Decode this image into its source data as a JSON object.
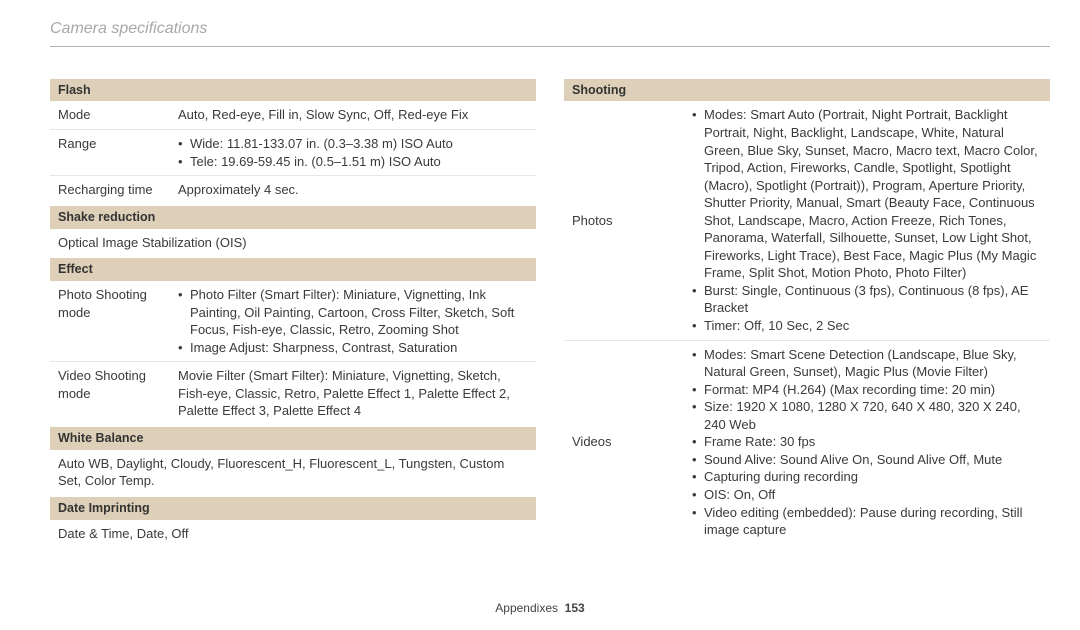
{
  "page_title": "Camera specifications",
  "footer_label": "Appendixes",
  "footer_page": "153",
  "colors": {
    "header_bg": "#ded0b8",
    "title_color": "#a8a8a8",
    "rule_color": "#b5b5b5",
    "row_border": "#e6e6e6",
    "text": "#3a3a3a"
  },
  "left": {
    "flash": {
      "header": "Flash",
      "mode_label": "Mode",
      "mode_value": "Auto, Red-eye, Fill in, Slow Sync, Off, Red-eye Fix",
      "range_label": "Range",
      "range_b1": "Wide: 11.81-133.07 in. (0.3–3.38 m) ISO Auto",
      "range_b2": "Tele: 19.69-59.45 in. (0.5–1.51 m) ISO Auto",
      "recharge_label": "Recharging time",
      "recharge_value": "Approximately 4 sec."
    },
    "shake": {
      "header": "Shake reduction",
      "value": "Optical Image Stabilization (OIS)"
    },
    "effect": {
      "header": "Effect",
      "photo_label": "Photo Shooting mode",
      "photo_b1": "Photo Filter (Smart Filter): Miniature, Vignetting, Ink Painting, Oil Painting, Cartoon, Cross Filter, Sketch, Soft Focus, Fish-eye, Classic, Retro, Zooming Shot",
      "photo_b2": "Image Adjust: Sharpness, Contrast, Saturation",
      "video_label": "Video Shooting mode",
      "video_value": "Movie Filter (Smart Filter): Miniature, Vignetting, Sketch, Fish-eye, Classic, Retro, Palette Effect 1, Palette Effect 2, Palette Effect 3, Palette Effect 4"
    },
    "wb": {
      "header": "White Balance",
      "value": "Auto WB, Daylight, Cloudy, Fluorescent_H, Fluorescent_L, Tungsten, Custom Set, Color Temp."
    },
    "date": {
      "header": "Date Imprinting",
      "value": "Date & Time, Date, Off"
    }
  },
  "right": {
    "shooting": {
      "header": "Shooting",
      "photos_label": "Photos",
      "photos_b1": "Modes: Smart Auto (Portrait, Night Portrait, Backlight Portrait, Night, Backlight, Landscape, White, Natural Green, Blue Sky, Sunset, Macro, Macro text, Macro Color, Tripod, Action, Fireworks, Candle, Spotlight, Spotlight (Macro), Spotlight (Portrait)), Program, Aperture Priority, Shutter Priority, Manual, Smart (Beauty Face, Continuous Shot, Landscape, Macro, Action Freeze, Rich Tones, Panorama, Waterfall, Silhouette, Sunset, Low Light Shot, Fireworks, Light Trace), Best Face, Magic Plus (My Magic Frame, Split Shot, Motion Photo, Photo Filter)",
      "photos_b2": "Burst: Single, Continuous (3 fps), Continuous (8 fps), AE Bracket",
      "photos_b3": "Timer: Off, 10 Sec, 2 Sec",
      "videos_label": "Videos",
      "videos_b1": "Modes: Smart Scene Detection (Landscape, Blue Sky, Natural Green, Sunset), Magic Plus (Movie Filter)",
      "videos_b2": "Format: MP4 (H.264) (Max recording time: 20 min)",
      "videos_b3": "Size: 1920 X 1080, 1280 X 720, 640 X 480, 320 X 240, 240 Web",
      "videos_b4": "Frame Rate: 30 fps",
      "videos_b5": "Sound Alive: Sound Alive On, Sound Alive Off, Mute",
      "videos_b6": "Capturing during recording",
      "videos_b7": "OIS: On, Off",
      "videos_b8": "Video editing (embedded): Pause during recording, Still image capture"
    }
  }
}
